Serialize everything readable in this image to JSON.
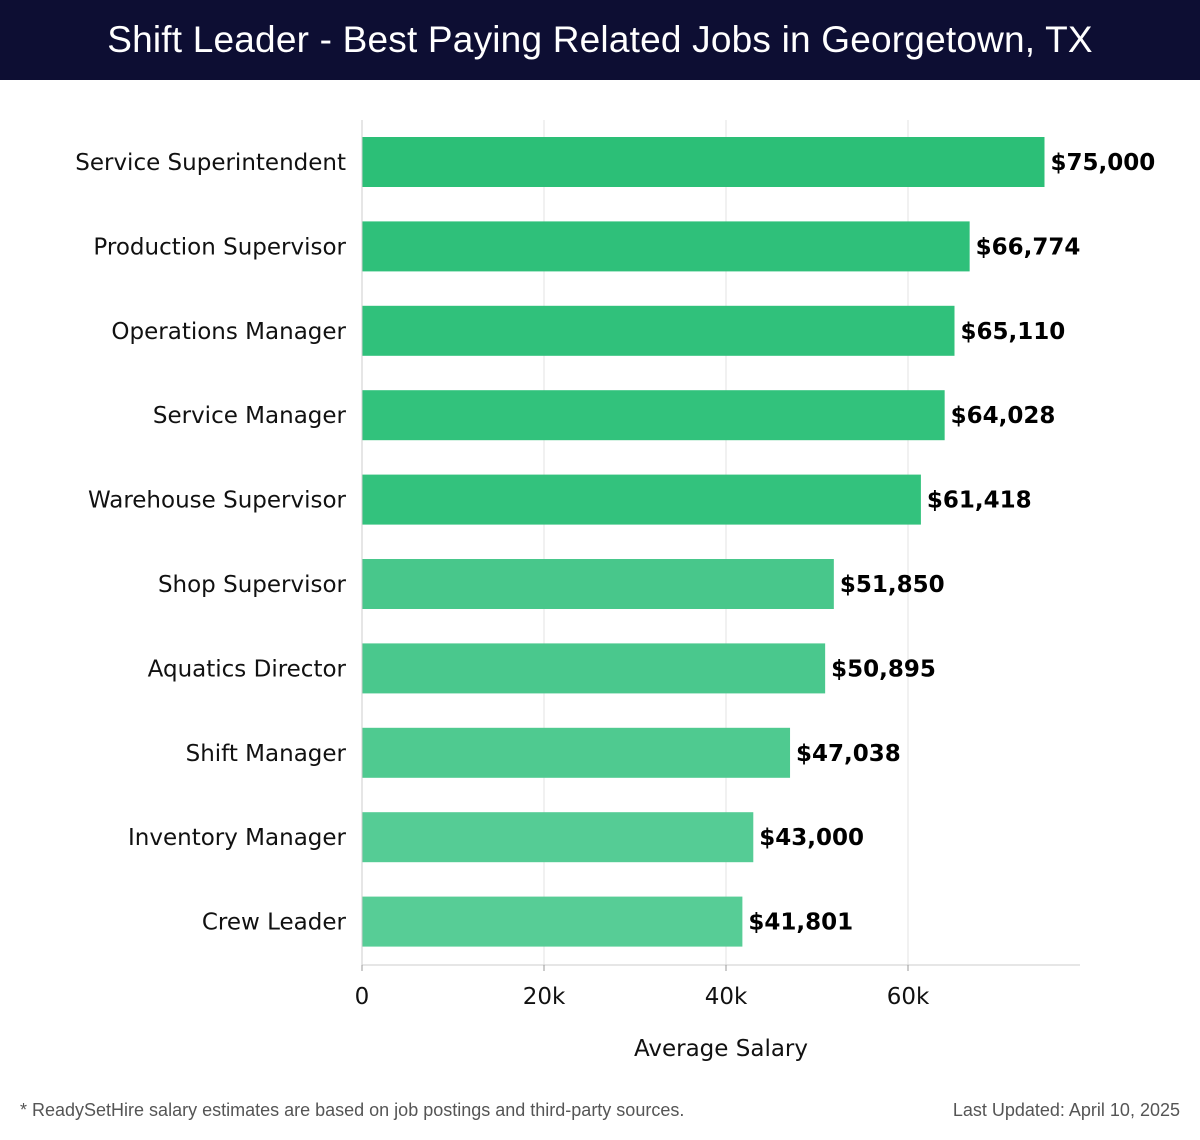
{
  "header": {
    "title": "Shift Leader - Best Paying Related Jobs in Georgetown, TX"
  },
  "chart_data": {
    "type": "bar",
    "orientation": "horizontal",
    "title": "Shift Leader - Best Paying Related Jobs in Georgetown, TX",
    "xlabel": "Average Salary",
    "ylabel": "",
    "categories": [
      "Service Superintendent",
      "Production Supervisor",
      "Operations Manager",
      "Service Manager",
      "Warehouse Supervisor",
      "Shop Supervisor",
      "Aquatics Director",
      "Shift Manager",
      "Inventory Manager",
      "Crew Leader"
    ],
    "values": [
      75000,
      66774,
      65110,
      64028,
      61418,
      51850,
      50895,
      47038,
      43000,
      41801
    ],
    "value_labels": [
      "$75,000",
      "$66,774",
      "$65,110",
      "$64,028",
      "$61,418",
      "$51,850",
      "$50,895",
      "$47,038",
      "$43,000",
      "$41,801"
    ],
    "xticks": [
      0,
      20000,
      40000,
      60000
    ],
    "xtick_labels": [
      "0",
      "20k",
      "40k",
      "60k"
    ],
    "xlim": [
      0,
      79000
    ],
    "grid": true,
    "bar_colors": [
      "#2cbf77",
      "#2fc07a",
      "#30c17b",
      "#32c27c",
      "#33c27d",
      "#48c78b",
      "#4ac88d",
      "#4fca90",
      "#55cc95",
      "#57cd96"
    ]
  },
  "footer": {
    "note": "* ReadySetHire salary estimates are based on job postings and third-party sources.",
    "updated": "Last Updated: April 10, 2025"
  }
}
